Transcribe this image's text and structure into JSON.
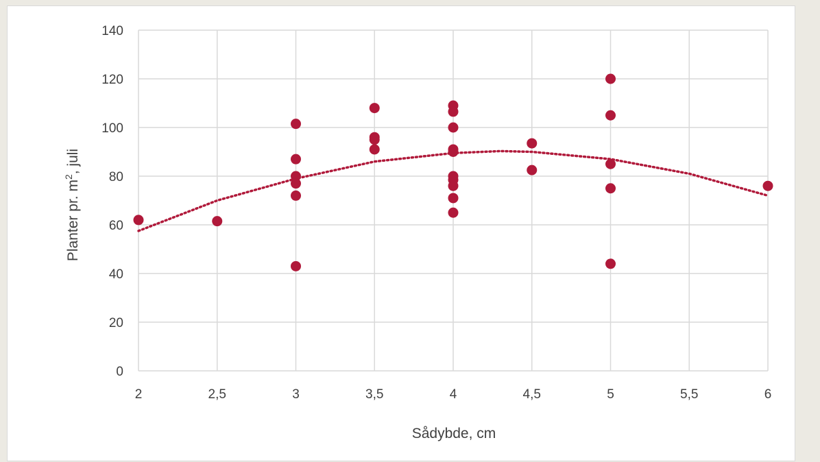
{
  "colors": {
    "marker": "#b0193a",
    "trendline": "#b0193a",
    "gridline": "#d9d9d9",
    "text": "#404040",
    "page_background": "#eceae3",
    "plot_background": "#ffffff"
  },
  "chart_data": {
    "type": "scatter",
    "title": "",
    "xlabel": "Sådybde, cm",
    "ylabel_parts": {
      "before": "Planter pr. m",
      "superscript": "2",
      "after": ", juli"
    },
    "xlim": [
      2,
      6
    ],
    "ylim": [
      0,
      140
    ],
    "grid": true,
    "x_ticks": [
      {
        "value": 2,
        "label": "2"
      },
      {
        "value": 2.5,
        "label": "2,5"
      },
      {
        "value": 3,
        "label": "3"
      },
      {
        "value": 3.5,
        "label": "3,5"
      },
      {
        "value": 4,
        "label": "4"
      },
      {
        "value": 4.5,
        "label": "4,5"
      },
      {
        "value": 5,
        "label": "5"
      },
      {
        "value": 5.5,
        "label": "5,5"
      },
      {
        "value": 6,
        "label": "6"
      }
    ],
    "y_ticks": [
      {
        "value": 0,
        "label": "0"
      },
      {
        "value": 20,
        "label": "20"
      },
      {
        "value": 40,
        "label": "40"
      },
      {
        "value": 60,
        "label": "60"
      },
      {
        "value": 80,
        "label": "80"
      },
      {
        "value": 100,
        "label": "100"
      },
      {
        "value": 120,
        "label": "120"
      },
      {
        "value": 140,
        "label": "140"
      }
    ],
    "series": [
      {
        "points": [
          {
            "x": 2,
            "y": 62
          },
          {
            "x": 2.5,
            "y": 61.5
          },
          {
            "x": 3,
            "y": 101.5
          },
          {
            "x": 3,
            "y": 87
          },
          {
            "x": 3,
            "y": 80
          },
          {
            "x": 3,
            "y": 77
          },
          {
            "x": 3,
            "y": 72
          },
          {
            "x": 3,
            "y": 43
          },
          {
            "x": 3.5,
            "y": 108
          },
          {
            "x": 3.5,
            "y": 96
          },
          {
            "x": 3.5,
            "y": 95
          },
          {
            "x": 3.5,
            "y": 91
          },
          {
            "x": 4,
            "y": 109
          },
          {
            "x": 4,
            "y": 106.5
          },
          {
            "x": 4,
            "y": 100
          },
          {
            "x": 4,
            "y": 91
          },
          {
            "x": 4,
            "y": 90
          },
          {
            "x": 4,
            "y": 80
          },
          {
            "x": 4,
            "y": 78.5
          },
          {
            "x": 4,
            "y": 76
          },
          {
            "x": 4,
            "y": 71
          },
          {
            "x": 4,
            "y": 65
          },
          {
            "x": 4.5,
            "y": 93.5
          },
          {
            "x": 4.5,
            "y": 82.5
          },
          {
            "x": 5,
            "y": 120
          },
          {
            "x": 5,
            "y": 105
          },
          {
            "x": 5,
            "y": 85
          },
          {
            "x": 5,
            "y": 75
          },
          {
            "x": 5,
            "y": 44
          },
          {
            "x": 6,
            "y": 76
          }
        ]
      }
    ],
    "trendline": {
      "type": "polynomial",
      "style": "dotted",
      "points": [
        {
          "x": 2,
          "y": 57.5
        },
        {
          "x": 2.5,
          "y": 70
        },
        {
          "x": 3,
          "y": 79
        },
        {
          "x": 3.5,
          "y": 86
        },
        {
          "x": 4,
          "y": 89.5
        },
        {
          "x": 4.3,
          "y": 90.3
        },
        {
          "x": 4.5,
          "y": 90
        },
        {
          "x": 5,
          "y": 87
        },
        {
          "x": 5.5,
          "y": 81
        },
        {
          "x": 6,
          "y": 72
        }
      ]
    }
  }
}
